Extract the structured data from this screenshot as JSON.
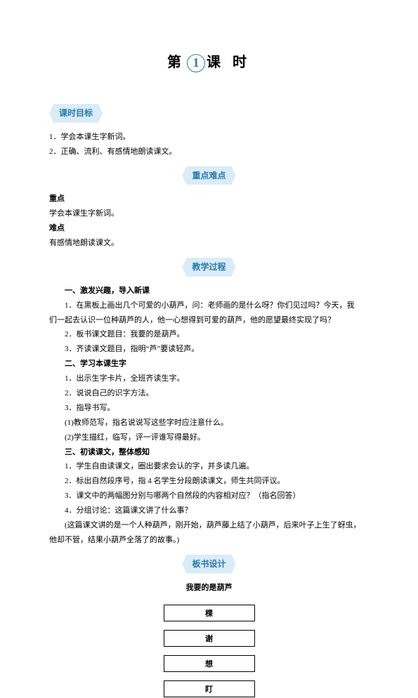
{
  "title": {
    "pre": "第",
    "num": "1",
    "post": "课 时"
  },
  "sections": {
    "objectives": {
      "header": "课时目标",
      "lines": [
        "1．学会本课生字新词。",
        "2．正确、流利、有感情地朗读课文。"
      ]
    },
    "keypoints": {
      "header": "重点难点",
      "kp_label": "重点",
      "kp_text": "学会本课生字新词。",
      "diff_label": "难点",
      "diff_text": "有感情地朗读课文。"
    },
    "process": {
      "header": "教学过程",
      "lines": [
        {
          "text": "一、激发兴趣，导入新课",
          "bold": true
        },
        {
          "text": "1．在黑板上画出几个可爱的小葫芦，问：老师画的是什么呀？你们见过吗？今天，我"
        },
        {
          "text2": "们一起去认识一位种葫芦的人，他一心想得到可爱的葫芦，他的愿望最终实现了吗？"
        },
        {
          "text": "2．板书课文题目：我要的是葫芦。"
        },
        {
          "text": "3．齐读课文题目，指明“芦”要读轻声。"
        },
        {
          "text": "二、学习本课生字",
          "bold": true
        },
        {
          "text": "1．出示生字卡片，全班齐读生字。"
        },
        {
          "text": "2．说说自己的识字方法。"
        },
        {
          "text": "3．指导书写。"
        },
        {
          "text": "(1)教师范写，指名说说写这些字时应注意什么。"
        },
        {
          "text": "(2)学生描红，临写，评一评谁写得最好。"
        },
        {
          "text": "三、初读课文，整体感知",
          "bold": true
        },
        {
          "text": "1．学生自由读课文，圈出要求会认的字，并多读几遍。"
        },
        {
          "text": "2．标出自然段序号，指 4 名学生分段朗读课文，师生共同评议。"
        },
        {
          "text": "3．课文中的两幅图分别与哪两个自然段的内容相对应？（指名回答）"
        },
        {
          "text": "4．分组讨论：这篇课文讲了什么事？"
        },
        {
          "text": "(这篇课文讲的是一个人种葫芦，刚开始，葫芦藤上结了小葫芦，后来叶子上生了蚜虫，"
        },
        {
          "text2": "他却不管，结果小葫芦全落了的故事。)"
        }
      ]
    },
    "board": {
      "header": "板书设计",
      "title": "我要的是葫芦",
      "boxes": [
        "棵",
        "谢",
        "想",
        "盯"
      ]
    }
  }
}
